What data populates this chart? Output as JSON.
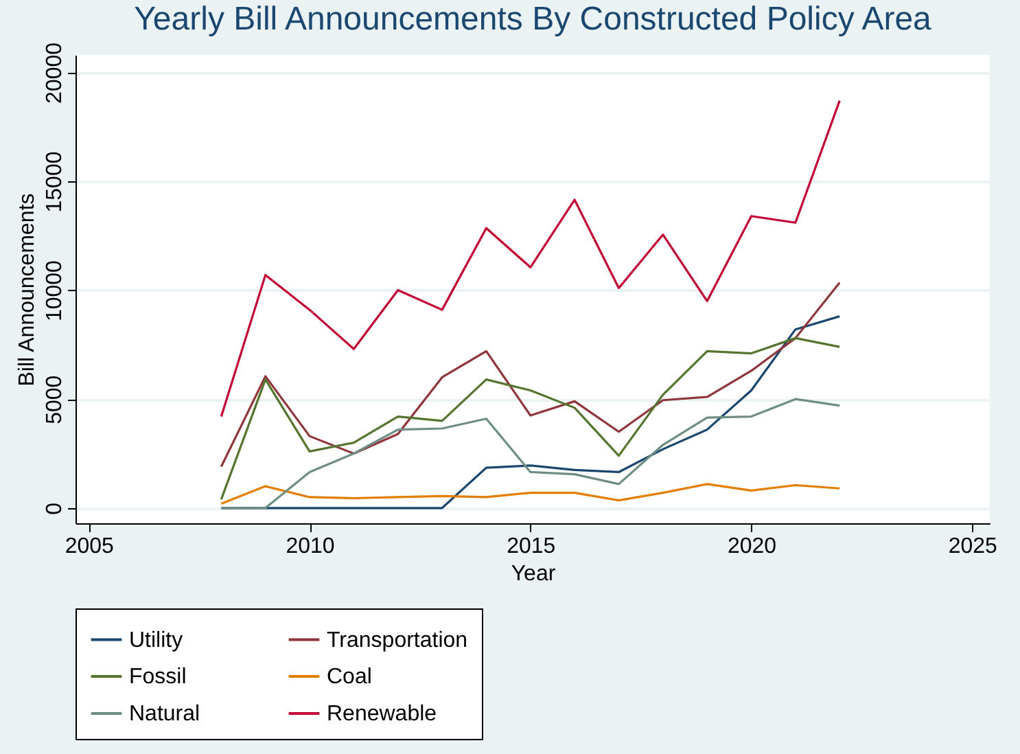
{
  "chart_data": {
    "type": "line",
    "title": "Yearly Bill Announcements By Constructed Policy Area",
    "xlabel": "Year",
    "ylabel": "Bill Announcements",
    "x": [
      2008,
      2009,
      2010,
      2011,
      2012,
      2013,
      2014,
      2015,
      2016,
      2017,
      2018,
      2019,
      2020,
      2021,
      2022
    ],
    "xlim": [
      2004.7,
      2025.4
    ],
    "xticks": [
      2005,
      2010,
      2015,
      2020,
      2025
    ],
    "ylim": [
      -700,
      20800
    ],
    "yticks": [
      0,
      5000,
      10000,
      15000,
      20000
    ],
    "grid": "y",
    "legend": "bottom",
    "marker": "none",
    "line_style": "solid",
    "series": [
      {
        "name": "Utility",
        "color": "#1a476f",
        "values": [
          0,
          0,
          0,
          0,
          0,
          0,
          1850,
          1950,
          1750,
          1650,
          2700,
          3600,
          5400,
          8200,
          8800
        ]
      },
      {
        "name": "Transportation",
        "color": "#90353b",
        "values": [
          1900,
          6050,
          3300,
          2500,
          3400,
          6000,
          7200,
          4250,
          4900,
          3500,
          4950,
          5100,
          6300,
          7800,
          10350
        ]
      },
      {
        "name": "Fossil",
        "color": "#55752f",
        "values": [
          400,
          5900,
          2600,
          3000,
          4200,
          4000,
          5900,
          5400,
          4600,
          2400,
          5200,
          7200,
          7100,
          7800,
          7400
        ]
      },
      {
        "name": "Coal",
        "color": "#e37e00",
        "values": [
          200,
          1000,
          500,
          450,
          500,
          550,
          500,
          700,
          700,
          350,
          700,
          1100,
          800,
          1050,
          900
        ]
      },
      {
        "name": "Natural",
        "color": "#6e8e84",
        "values": [
          0,
          0,
          1650,
          2500,
          3600,
          3650,
          4100,
          1650,
          1550,
          1100,
          2900,
          4150,
          4200,
          5000,
          4700
        ]
      },
      {
        "name": "Renewable",
        "color": "#c10534",
        "values": [
          4200,
          10700,
          9100,
          7300,
          10000,
          9100,
          12850,
          11050,
          14150,
          10100,
          12550,
          9500,
          13400,
          13100,
          18700
        ]
      }
    ]
  }
}
